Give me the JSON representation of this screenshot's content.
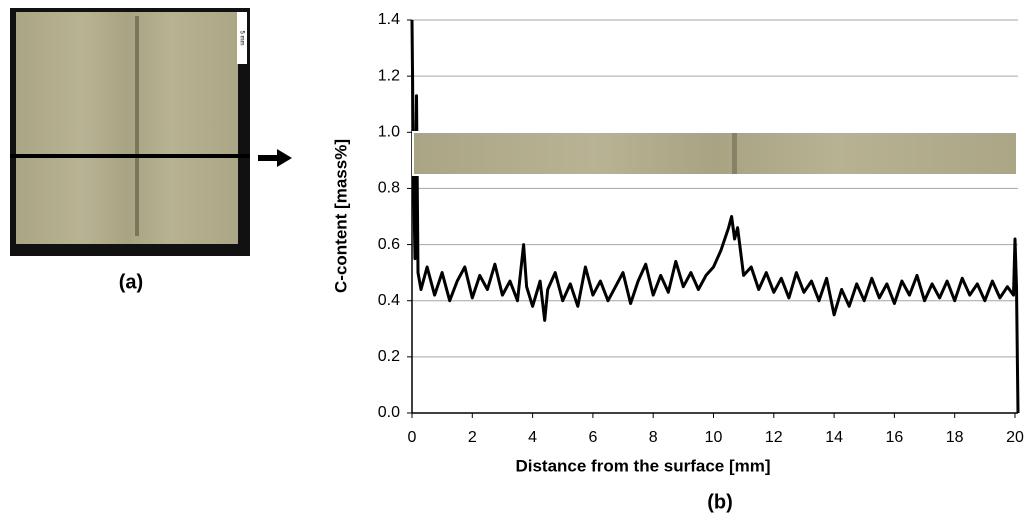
{
  "figure": {
    "panel_a_label": "(a)",
    "scale_label": "5 mm"
  },
  "chart_data": {
    "type": "line",
    "panel_label": "(b)",
    "x_label": "Distance from the surface [mm]",
    "y_label": "C-content [mass%]",
    "xlim": [
      0,
      20.1
    ],
    "ylim": [
      0,
      1.4
    ],
    "xticks": [
      0,
      2,
      4,
      6,
      8,
      10,
      12,
      14,
      16,
      18,
      20
    ],
    "yticks": [
      {
        "value": 0,
        "label": "0.0"
      },
      0.2,
      0.4,
      0.6,
      0.8,
      {
        "value": 1,
        "label": "1.0"
      },
      1.2,
      1.4
    ],
    "grid": true,
    "series": [
      {
        "color": "#000000",
        "x": [
          0,
          0.05,
          0.1,
          0.15,
          0.2,
          0.3,
          0.5,
          0.75,
          1,
          1.25,
          1.5,
          1.75,
          2,
          2.25,
          2.5,
          2.75,
          3,
          3.25,
          3.5,
          3.7,
          3.8,
          4,
          4.25,
          4.4,
          4.5,
          4.75,
          5,
          5.25,
          5.5,
          5.75,
          6,
          6.25,
          6.5,
          6.75,
          7,
          7.25,
          7.5,
          7.75,
          8,
          8.25,
          8.5,
          8.75,
          9,
          9.25,
          9.5,
          9.75,
          10,
          10.25,
          10.5,
          10.6,
          10.7,
          10.8,
          11,
          11.25,
          11.5,
          11.75,
          12,
          12.25,
          12.5,
          12.75,
          13,
          13.25,
          13.5,
          13.75,
          14,
          14.25,
          14.5,
          14.75,
          15,
          15.25,
          15.5,
          15.75,
          16,
          16.25,
          16.5,
          16.75,
          17,
          17.25,
          17.5,
          17.75,
          18,
          18.25,
          18.5,
          18.75,
          19,
          19.25,
          19.5,
          19.75,
          19.95,
          20,
          20.05,
          20.1
        ],
        "values": [
          1.4,
          0.85,
          0.55,
          1.13,
          0.5,
          0.44,
          0.52,
          0.42,
          0.5,
          0.4,
          0.47,
          0.52,
          0.41,
          0.49,
          0.44,
          0.53,
          0.42,
          0.47,
          0.4,
          0.6,
          0.45,
          0.38,
          0.47,
          0.33,
          0.44,
          0.5,
          0.4,
          0.46,
          0.38,
          0.52,
          0.42,
          0.47,
          0.4,
          0.45,
          0.5,
          0.39,
          0.47,
          0.53,
          0.42,
          0.49,
          0.43,
          0.54,
          0.45,
          0.5,
          0.44,
          0.49,
          0.52,
          0.58,
          0.66,
          0.7,
          0.62,
          0.66,
          0.49,
          0.52,
          0.44,
          0.5,
          0.43,
          0.48,
          0.41,
          0.5,
          0.43,
          0.47,
          0.4,
          0.48,
          0.35,
          0.44,
          0.38,
          0.46,
          0.4,
          0.48,
          0.41,
          0.46,
          0.39,
          0.47,
          0.42,
          0.49,
          0.4,
          0.46,
          0.41,
          0.47,
          0.4,
          0.48,
          0.42,
          0.46,
          0.4,
          0.47,
          0.41,
          0.45,
          0.42,
          0.62,
          0.45,
          0
        ]
      }
    ]
  }
}
